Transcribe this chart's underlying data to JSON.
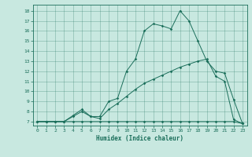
{
  "title": "",
  "xlabel": "Humidex (Indice chaleur)",
  "background_color": "#c8e8e0",
  "line_color": "#1a6e5a",
  "xlim": [
    -0.5,
    23.5
  ],
  "ylim": [
    6.6,
    18.6
  ],
  "xticks": [
    0,
    1,
    2,
    3,
    4,
    5,
    6,
    7,
    8,
    9,
    10,
    11,
    12,
    13,
    14,
    15,
    16,
    17,
    18,
    19,
    20,
    21,
    22,
    23
  ],
  "yticks": [
    7,
    8,
    9,
    10,
    11,
    12,
    13,
    14,
    15,
    16,
    17,
    18
  ],
  "line1_x": [
    0,
    1,
    2,
    3,
    4,
    5,
    6,
    7,
    8,
    9,
    10,
    11,
    12,
    13,
    14,
    15,
    16,
    17,
    18,
    19,
    20,
    21,
    22,
    23
  ],
  "line1_y": [
    7,
    7,
    7,
    7,
    7,
    7,
    7,
    7,
    7,
    7,
    7,
    7,
    7,
    7,
    7,
    7,
    7,
    7,
    7,
    7,
    7,
    7,
    7,
    6.8
  ],
  "line2_x": [
    0,
    1,
    2,
    3,
    4,
    5,
    6,
    7,
    8,
    9,
    10,
    11,
    12,
    13,
    14,
    15,
    16,
    17,
    18,
    19,
    20,
    21,
    22,
    23
  ],
  "line2_y": [
    7,
    7,
    7,
    7,
    7.5,
    8.0,
    7.5,
    7.3,
    8.2,
    8.8,
    9.5,
    10.2,
    10.8,
    11.2,
    11.6,
    12.0,
    12.4,
    12.7,
    13.0,
    13.2,
    11.5,
    11.0,
    7.2,
    6.8
  ],
  "line3_x": [
    0,
    1,
    2,
    3,
    4,
    5,
    6,
    7,
    8,
    9,
    10,
    11,
    12,
    13,
    14,
    15,
    16,
    17,
    18,
    19,
    20,
    21,
    22,
    23
  ],
  "line3_y": [
    7,
    7,
    7,
    7,
    7.6,
    8.2,
    7.5,
    7.5,
    9.0,
    9.3,
    12.0,
    13.2,
    16.0,
    16.7,
    16.5,
    16.2,
    18.0,
    17.0,
    15.0,
    13.0,
    12.0,
    11.8,
    9.2,
    6.8
  ]
}
